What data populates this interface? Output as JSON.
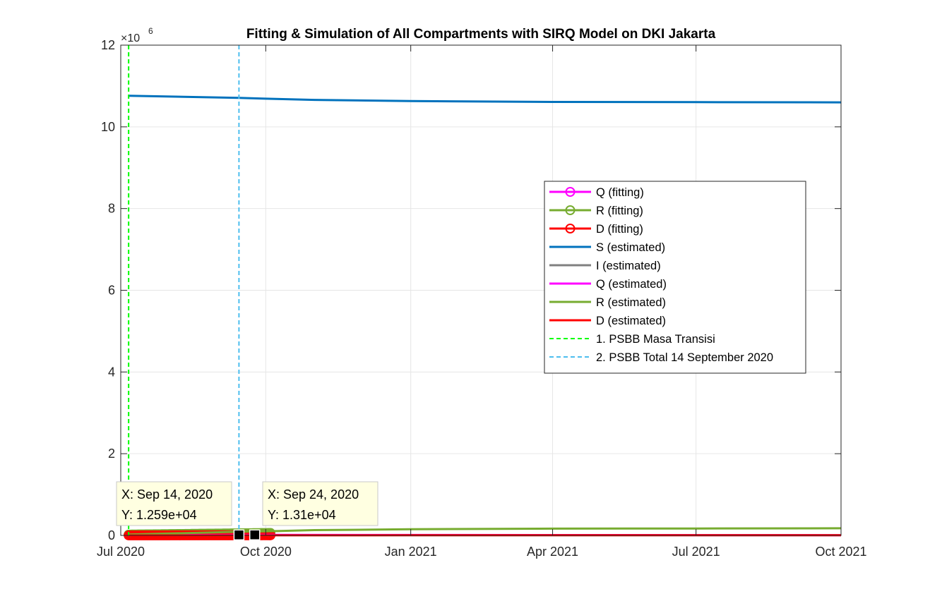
{
  "chart_data": {
    "type": "line",
    "title": "Fitting & Simulation of All Compartments with SIRQ Model on DKI Jakarta",
    "xlabel": "",
    "ylabel": "",
    "x_axis": {
      "type": "date",
      "range": [
        "2020-07-01",
        "2021-10-01"
      ],
      "tick_values": [
        "2020-07-01",
        "2020-10-01",
        "2021-01-01",
        "2021-04-01",
        "2021-07-01",
        "2021-10-01"
      ],
      "tick_labels": [
        "Jul 2020",
        "Oct 2020",
        "Jan 2021",
        "Apr 2021",
        "Jul 2021",
        "Oct 2021"
      ]
    },
    "y_axis": {
      "range": [
        0,
        12000000
      ],
      "tick_values": [
        0,
        2000000,
        4000000,
        6000000,
        8000000,
        10000000,
        12000000
      ],
      "tick_labels": [
        "0",
        "2",
        "4",
        "6",
        "8",
        "10",
        "12"
      ],
      "exponent_label": "×10",
      "exponent": "6"
    },
    "grid": true,
    "legend_position": "center-right",
    "fitting_range": [
      "2020-07-06",
      "2020-10-04"
    ],
    "series": [
      {
        "name": "Q (fitting)",
        "color": "#ff00ff",
        "style": "line-marker",
        "x": [
          "2020-07-06",
          "2020-10-04"
        ],
        "y": [
          5000,
          12000
        ]
      },
      {
        "name": "R (fitting)",
        "color": "#77ac30",
        "style": "line-marker",
        "x": [
          "2020-07-06",
          "2020-10-04"
        ],
        "y": [
          20000,
          60000
        ]
      },
      {
        "name": "D (fitting)",
        "color": "#ff0000",
        "style": "line-marker",
        "x": [
          "2020-07-06",
          "2020-10-04"
        ],
        "y": [
          500,
          2500
        ]
      },
      {
        "name": "S (estimated)",
        "color": "#0072bd",
        "style": "line",
        "x": [
          "2020-07-06",
          "2020-09-14",
          "2020-10-01",
          "2020-11-01",
          "2021-01-01",
          "2021-04-01",
          "2021-07-01",
          "2021-10-01"
        ],
        "y": [
          10760000,
          10710000,
          10690000,
          10660000,
          10630000,
          10610000,
          10605000,
          10600000
        ]
      },
      {
        "name": "I (estimated)",
        "color": "#808080",
        "style": "line",
        "x": [
          "2020-07-06",
          "2020-10-01",
          "2021-01-01",
          "2021-10-01"
        ],
        "y": [
          5000,
          8000,
          6000,
          3000
        ]
      },
      {
        "name": "Q (estimated)",
        "color": "#ff00ff",
        "style": "line",
        "x": [
          "2020-07-06",
          "2020-10-01",
          "2021-01-01",
          "2021-10-01"
        ],
        "y": [
          5000,
          12000,
          10000,
          6000
        ]
      },
      {
        "name": "R (estimated)",
        "color": "#77ac30",
        "style": "line",
        "x": [
          "2020-07-06",
          "2020-09-14",
          "2020-10-01",
          "2020-11-01",
          "2021-01-01",
          "2021-04-01",
          "2021-07-01",
          "2021-10-01"
        ],
        "y": [
          20000,
          90000,
          100000,
          130000,
          150000,
          165000,
          170000,
          175000
        ]
      },
      {
        "name": "D (estimated)",
        "color": "#ff0000",
        "style": "line",
        "x": [
          "2020-07-06",
          "2020-10-01",
          "2021-01-01",
          "2021-10-01"
        ],
        "y": [
          500,
          2500,
          4000,
          6000
        ]
      },
      {
        "name": "1. PSBB Masa Transisi",
        "color": "#00ff00",
        "style": "dashed-vertical",
        "x": [
          "2020-07-06"
        ]
      },
      {
        "name": "2. PSBB Total 14 September 2020",
        "color": "#4dbeee",
        "style": "dashed-vertical",
        "x": [
          "2020-09-14"
        ]
      }
    ],
    "datatips": [
      {
        "x": "2020-09-14",
        "y": 12590,
        "x_text": "X: Sep 14, 2020",
        "y_text": "Y: 1.259e+04"
      },
      {
        "x": "2020-09-24",
        "y": 13100,
        "x_text": "X: Sep 24, 2020",
        "y_text": "Y: 1.31e+04"
      }
    ]
  }
}
